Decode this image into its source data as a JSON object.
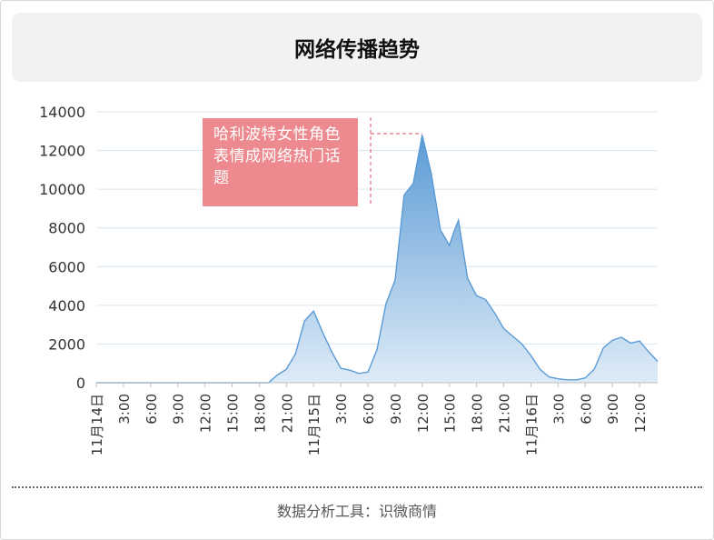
{
  "header": {
    "title": "网络传播趋势"
  },
  "footer": {
    "text": "数据分析工具：识微商情"
  },
  "annotation": {
    "text": "哈利波特女性角色表情成网络热门话题"
  },
  "colors": {
    "line": "#5b9bd5",
    "area_top": "#5b9bd5",
    "area_bottom": "#deebf7",
    "annotation_bg": "#ec8a8f",
    "annotation_leader": "#e8707a",
    "grid": "#d6e6f2"
  },
  "chart_data": {
    "type": "area",
    "title": "",
    "xlabel": "",
    "ylabel": "",
    "ylim": [
      0,
      14000
    ],
    "yticks": [
      0,
      2000,
      4000,
      6000,
      8000,
      10000,
      12000,
      14000
    ],
    "grid": true,
    "x_tick_labels": [
      "11月14日",
      "3:00",
      "6:00",
      "9:00",
      "12:00",
      "15:00",
      "18:00",
      "21:00",
      "11月15日",
      "3:00",
      "6:00",
      "9:00",
      "12:00",
      "15:00",
      "18:00",
      "21:00",
      "11月16日",
      "3:00",
      "6:00",
      "9:00",
      "12:00"
    ],
    "x_unit_hours_per_tick": 3,
    "series": [
      {
        "points": [
          [
            0,
            0
          ],
          [
            19,
            0
          ],
          [
            20,
            400
          ],
          [
            21,
            700
          ],
          [
            22,
            1500
          ],
          [
            23,
            3200
          ],
          [
            24,
            3700
          ],
          [
            25,
            2600
          ],
          [
            26,
            1600
          ],
          [
            27,
            750
          ],
          [
            28,
            650
          ],
          [
            29,
            480
          ],
          [
            30,
            550
          ],
          [
            31,
            1700
          ],
          [
            32,
            4100
          ],
          [
            33,
            5300
          ],
          [
            34,
            9700
          ],
          [
            35,
            10300
          ],
          [
            36,
            12800
          ],
          [
            37,
            10800
          ],
          [
            38,
            7900
          ],
          [
            39,
            7100
          ],
          [
            39.5,
            7800
          ],
          [
            40,
            8400
          ],
          [
            41,
            5400
          ],
          [
            42,
            4500
          ],
          [
            43,
            4300
          ],
          [
            44,
            3600
          ],
          [
            45,
            2800
          ],
          [
            46,
            2400
          ],
          [
            47,
            2000
          ],
          [
            48,
            1400
          ],
          [
            49,
            700
          ],
          [
            50,
            300
          ],
          [
            51,
            200
          ],
          [
            52,
            150
          ],
          [
            53,
            150
          ],
          [
            54,
            250
          ],
          [
            55,
            700
          ],
          [
            56,
            1800
          ],
          [
            57,
            2200
          ],
          [
            58,
            2350
          ],
          [
            59,
            2050
          ],
          [
            60,
            2150
          ],
          [
            61,
            1600
          ],
          [
            62,
            1100
          ]
        ]
      }
    ]
  }
}
